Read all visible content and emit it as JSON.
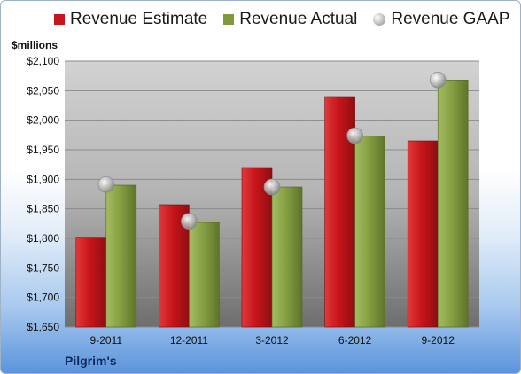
{
  "legend": {
    "estimate": "Revenue Estimate",
    "actual": "Revenue Actual",
    "gaap": "Revenue GAAP"
  },
  "unit_label": "$millions",
  "footer": "Pilgrim's",
  "colors": {
    "estimate": "#c8151b",
    "actual": "#7f9a3c",
    "gaap": "#b0b0b0"
  },
  "chart_data": {
    "type": "bar",
    "categories": [
      "9-2011",
      "12-2011",
      "3-2012",
      "6-2012",
      "9-2012"
    ],
    "series": [
      {
        "name": "Revenue Estimate",
        "type": "bar",
        "values": [
          1802,
          1857,
          1920,
          2040,
          1965
        ]
      },
      {
        "name": "Revenue Actual",
        "type": "bar",
        "values": [
          1890,
          1827,
          1887,
          1973,
          2068
        ]
      },
      {
        "name": "Revenue GAAP",
        "type": "scatter",
        "values": [
          1891,
          1829,
          1887,
          1974,
          2068
        ]
      }
    ],
    "ylim": [
      1650,
      2100
    ],
    "yticks": [
      "$1,650",
      "$1,700",
      "$1,750",
      "$1,800",
      "$1,850",
      "$1,900",
      "$1,950",
      "$2,000",
      "$2,050",
      "$2,100"
    ],
    "grid": true,
    "legend_position": "top"
  }
}
